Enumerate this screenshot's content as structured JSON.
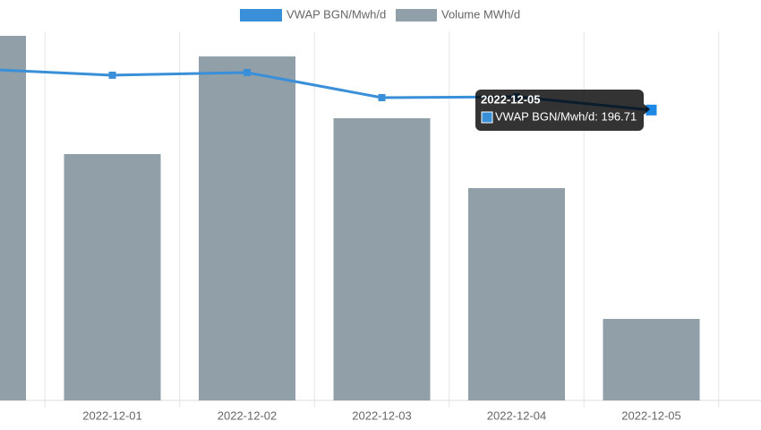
{
  "chart_data": {
    "type": "bar-line",
    "categories": [
      null,
      "2022-12-01",
      "2022-12-02",
      "2022-12-03",
      "2022-12-04",
      "2022-12-05",
      null
    ],
    "series": [
      {
        "name": "VWAP BGN/Mwh/d",
        "color": "#3a8fd9",
        "axis": "y2",
        "values": [
          224.5,
          220.3,
          222.1,
          205.1,
          205.7,
          196.71,
          null
        ]
      },
      {
        "name": "Volume MWh/d",
        "color": "#919fa9",
        "axis": "y",
        "values": [
          24697,
          16687,
          23301,
          19114,
          14381,
          5522,
          null
        ]
      }
    ],
    "ylim": [
      0,
      25000
    ],
    "y2lim": [
      0,
      250
    ],
    "tooltip": {
      "label": "VWAP BGN/Mwh/d: 196.71"
    }
  }
}
